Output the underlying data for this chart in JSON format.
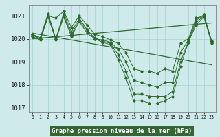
{
  "hours": [
    0,
    1,
    2,
    3,
    4,
    5,
    6,
    7,
    8,
    9,
    10,
    11,
    12,
    13,
    14,
    15,
    16,
    17,
    18,
    19,
    20,
    21,
    22,
    23
  ],
  "members": [
    [
      1020.2,
      1020.0,
      1021.0,
      1020.9,
      1021.2,
      1020.5,
      1021.0,
      1020.6,
      1020.2,
      1020.1,
      1019.95,
      1019.8,
      1019.4,
      1018.7,
      1018.6,
      1018.6,
      1018.5,
      1018.7,
      1018.6,
      1019.8,
      1020.0,
      1020.9,
      1021.0,
      1019.9
    ],
    [
      1020.2,
      1020.05,
      1021.1,
      1020.0,
      1021.1,
      1020.3,
      1020.9,
      1020.4,
      1020.0,
      1019.95,
      1019.85,
      1019.55,
      1019.0,
      1018.2,
      1018.1,
      1018.0,
      1017.9,
      1018.1,
      1018.1,
      1019.4,
      1019.95,
      1020.8,
      1021.05,
      1019.9
    ],
    [
      1020.15,
      1020.0,
      1021.0,
      1020.0,
      1021.0,
      1020.2,
      1020.8,
      1020.35,
      1020.05,
      1019.9,
      1019.8,
      1019.3,
      1018.6,
      1017.6,
      1017.6,
      1017.5,
      1017.5,
      1017.5,
      1017.7,
      1019.0,
      1019.9,
      1020.7,
      1021.0,
      1019.85
    ],
    [
      1020.1,
      1019.95,
      1020.95,
      1019.95,
      1020.95,
      1020.1,
      1020.75,
      1020.25,
      1020.0,
      1019.85,
      1019.75,
      1019.1,
      1018.3,
      1017.3,
      1017.3,
      1017.2,
      1017.2,
      1017.3,
      1017.5,
      1018.8,
      1019.85,
      1020.6,
      1020.95,
      1019.8
    ]
  ],
  "trend1": [
    1020.25,
    1020.19,
    1020.13,
    1020.07,
    1020.01,
    1019.95,
    1019.89,
    1019.83,
    1019.77,
    1019.71,
    1019.65,
    1019.59,
    1019.53,
    1019.47,
    1019.41,
    1019.35,
    1019.29,
    1019.23,
    1019.17,
    1019.11,
    1019.05,
    1018.99,
    1018.93,
    1018.87
  ],
  "trend2": [
    1020.0,
    1020.03,
    1020.06,
    1020.09,
    1020.12,
    1020.15,
    1020.18,
    1020.21,
    1020.24,
    1020.27,
    1020.3,
    1020.33,
    1020.36,
    1020.39,
    1020.42,
    1020.45,
    1020.48,
    1020.51,
    1020.54,
    1020.57,
    1020.6,
    1020.63,
    1020.66,
    1020.69
  ],
  "ylim": [
    1016.8,
    1021.45
  ],
  "yticks": [
    1017,
    1018,
    1019,
    1020,
    1021
  ],
  "xlabel": "Graphe pression niveau de la mer (hPa)",
  "line_color": "#2d6a2d",
  "bg_color": "#ceeaea",
  "grid_color": "#aacfcf",
  "label_bg": "#336633",
  "label_fg": "#ffffff"
}
